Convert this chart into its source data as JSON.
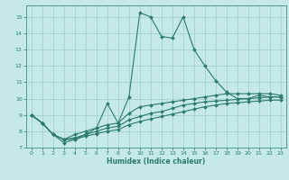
{
  "xlabel": "Humidex (Indice chaleur)",
  "bg_color": "#c5e8e8",
  "line_color": "#2d7a6e",
  "grid_color": "#9dcece",
  "xlim": [
    -0.5,
    23.5
  ],
  "ylim": [
    7.0,
    15.7
  ],
  "yticks": [
    7,
    8,
    9,
    10,
    11,
    12,
    13,
    14,
    15
  ],
  "xticks": [
    0,
    1,
    2,
    3,
    4,
    5,
    6,
    7,
    8,
    9,
    10,
    11,
    12,
    13,
    14,
    15,
    16,
    17,
    18,
    19,
    20,
    21,
    22,
    23
  ],
  "line1_x": [
    0,
    1,
    2,
    3,
    4,
    5,
    6,
    7,
    8,
    9,
    10,
    11,
    12,
    13,
    14,
    15,
    16,
    17,
    18,
    19,
    20,
    21,
    22,
    23
  ],
  "line1_y": [
    9.0,
    8.5,
    7.8,
    7.3,
    7.5,
    7.8,
    8.2,
    9.7,
    8.5,
    10.1,
    15.25,
    15.0,
    13.8,
    13.7,
    15.0,
    13.0,
    12.0,
    11.1,
    10.4,
    10.0,
    10.0,
    10.2,
    10.1,
    10.1
  ],
  "line2_x": [
    0,
    1,
    2,
    3,
    4,
    5,
    6,
    7,
    8,
    9,
    10,
    11,
    12,
    13,
    14,
    15,
    16,
    17,
    18,
    19,
    20,
    21,
    22,
    23
  ],
  "line2_y": [
    9.0,
    8.5,
    7.8,
    7.5,
    7.8,
    8.0,
    8.2,
    8.4,
    8.5,
    9.1,
    9.5,
    9.6,
    9.7,
    9.8,
    9.9,
    10.0,
    10.1,
    10.2,
    10.3,
    10.3,
    10.3,
    10.3,
    10.3,
    10.2
  ],
  "line3_x": [
    0,
    1,
    2,
    3,
    4,
    5,
    6,
    7,
    8,
    9,
    10,
    11,
    12,
    13,
    14,
    15,
    16,
    17,
    18,
    19,
    20,
    21,
    22,
    23
  ],
  "line3_y": [
    9.0,
    8.5,
    7.8,
    7.5,
    7.6,
    7.8,
    8.0,
    8.2,
    8.3,
    8.7,
    8.9,
    9.1,
    9.2,
    9.4,
    9.6,
    9.7,
    9.8,
    9.85,
    9.9,
    9.95,
    10.0,
    10.05,
    10.1,
    10.1
  ],
  "line4_x": [
    0,
    1,
    2,
    3,
    4,
    5,
    6,
    7,
    8,
    9,
    10,
    11,
    12,
    13,
    14,
    15,
    16,
    17,
    18,
    19,
    20,
    21,
    22,
    23
  ],
  "line4_y": [
    9.0,
    8.5,
    7.8,
    7.5,
    7.5,
    7.7,
    7.85,
    8.0,
    8.1,
    8.4,
    8.6,
    8.75,
    8.9,
    9.05,
    9.2,
    9.35,
    9.5,
    9.6,
    9.7,
    9.75,
    9.8,
    9.85,
    9.9,
    9.9
  ]
}
